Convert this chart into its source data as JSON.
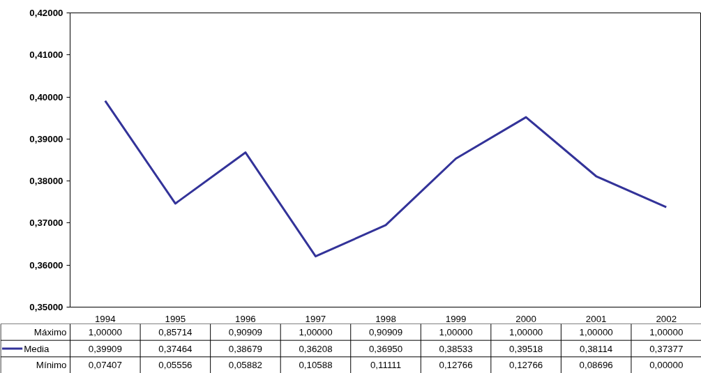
{
  "chart_data": {
    "type": "line",
    "categories": [
      "1994",
      "1995",
      "1996",
      "1997",
      "1998",
      "1999",
      "2000",
      "2001",
      "2002"
    ],
    "series": [
      {
        "name": "Máximo",
        "values": [
          null,
          null,
          null,
          null,
          null,
          null,
          null,
          null,
          null
        ],
        "value_labels": [
          "1,00000",
          "0,85714",
          "0,90909",
          "1,00000",
          "0,90909",
          "1,00000",
          "1,00000",
          "1,00000",
          "1,00000"
        ]
      },
      {
        "name": "Media",
        "color": "#333399",
        "values": [
          0.39909,
          0.37464,
          0.38679,
          0.36208,
          0.3695,
          0.38533,
          0.39518,
          0.38114,
          0.37377
        ],
        "value_labels": [
          "0,39909",
          "0,37464",
          "0,38679",
          "0,36208",
          "0,36950",
          "0,38533",
          "0,39518",
          "0,38114",
          "0,37377"
        ]
      },
      {
        "name": "Mínimo",
        "values": [
          null,
          null,
          null,
          null,
          null,
          null,
          null,
          null,
          null
        ],
        "value_labels": [
          "0,07407",
          "0,05556",
          "0,05882",
          "0,10588",
          "0,11111",
          "0,12766",
          "0,12766",
          "0,08696",
          "0,00000"
        ]
      }
    ],
    "ylim": [
      0.35,
      0.42
    ],
    "yticks": [
      {
        "value": 0.35,
        "label": "0,35000"
      },
      {
        "value": 0.36,
        "label": "0,36000"
      },
      {
        "value": 0.37,
        "label": "0,37000"
      },
      {
        "value": 0.38,
        "label": "0,38000"
      },
      {
        "value": 0.39,
        "label": "0,39000"
      },
      {
        "value": 0.4,
        "label": "0,40000"
      },
      {
        "value": 0.41,
        "label": "0,41000"
      },
      {
        "value": 0.42,
        "label": "0,42000"
      }
    ],
    "grid": false,
    "line_style": "solid",
    "marker": "none"
  }
}
